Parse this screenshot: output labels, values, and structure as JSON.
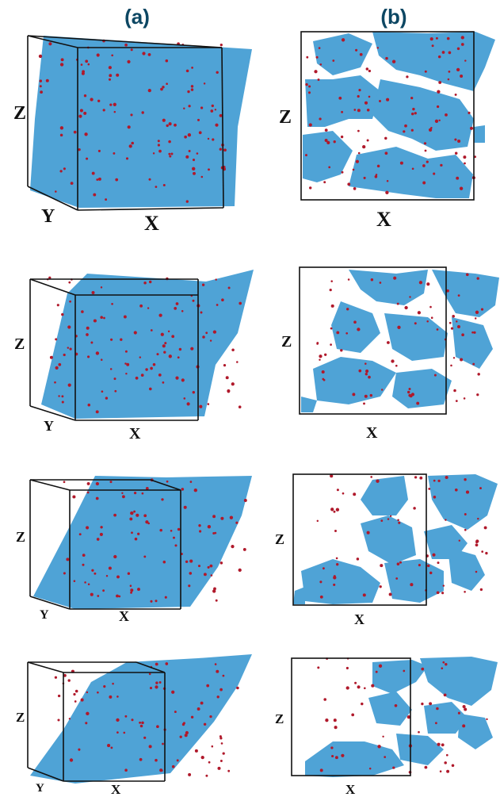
{
  "columns": [
    {
      "label": "(a)"
    },
    {
      "label": "(b)"
    }
  ],
  "rows": [
    {
      "a": {
        "z": "Z",
        "y": "Y",
        "x": "X"
      },
      "b": {
        "z": "Z",
        "x": "X"
      }
    },
    {
      "a": {
        "z": "Z",
        "y": "Y",
        "x": "X"
      },
      "b": {
        "z": "Z",
        "x": "X"
      }
    },
    {
      "a": {
        "z": "Z",
        "y": "Y",
        "x": "X"
      },
      "b": {
        "z": "Z",
        "x": "X"
      }
    },
    {
      "a": {
        "z": "Z",
        "y": "Y",
        "x": "X"
      },
      "b": {
        "z": "Z",
        "x": "X"
      }
    }
  ],
  "colors": {
    "matrix_particles": "#4fa3d6",
    "minority_particles": "#b0192b",
    "box_edges": "#111111",
    "headers": "#0d4763"
  }
}
